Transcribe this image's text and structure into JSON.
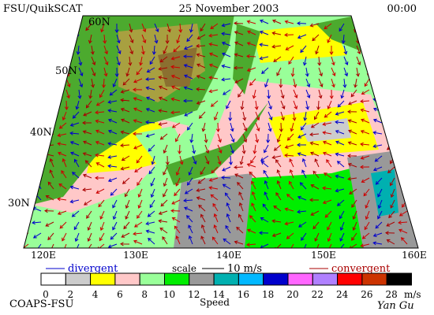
{
  "header": {
    "left": "FSU/QuikSCAT",
    "date": "25 November 2003",
    "time": "00:00"
  },
  "map": {
    "lat_labels": [
      "60N",
      "50N",
      "40N",
      "30N"
    ],
    "lon_labels": [
      "120E",
      "130E",
      "140E",
      "150E",
      "160E"
    ]
  },
  "legend": {
    "divergent": "divergent",
    "scale": "scale",
    "scale_value": "10 m/s",
    "convergent": "convergent",
    "speed_label": "Speed",
    "unit": "m/s",
    "ticks": [
      0,
      2,
      4,
      6,
      8,
      10,
      12,
      14,
      16,
      18,
      20,
      22,
      24,
      26,
      28
    ],
    "colors": [
      "#ffffff",
      "#cccccc",
      "#ffff00",
      "#ffc8c8",
      "#99ff99",
      "#00ee00",
      "#999999",
      "#00b0b0",
      "#00b8ff",
      "#0000cc",
      "#ff66ff",
      "#b080ff",
      "#ff0000",
      "#cc3300",
      "#000000"
    ]
  },
  "footer": {
    "left": "COAPS-FSU",
    "right": "Yan Gu"
  }
}
